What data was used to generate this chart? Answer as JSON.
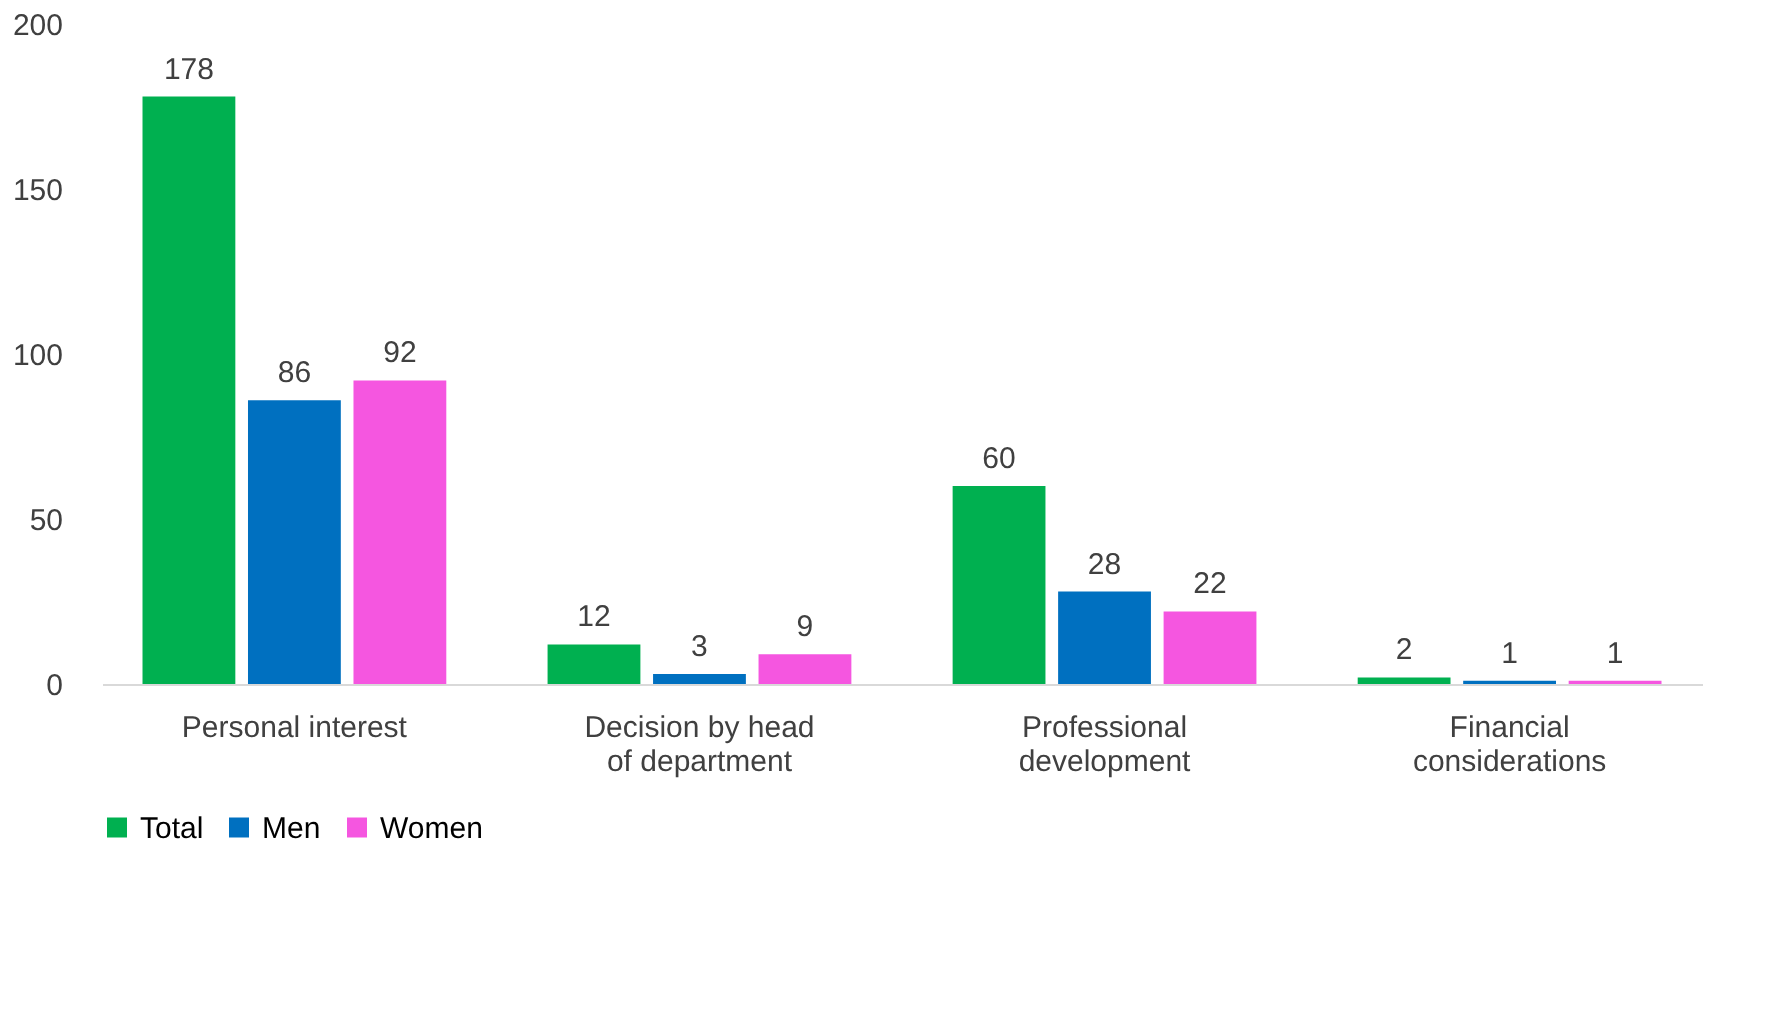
{
  "chart_data": {
    "type": "bar",
    "categories": [
      "Personal interest",
      "Decision by head of department",
      "Professional development",
      "Financial considerations"
    ],
    "series": [
      {
        "name": "Total",
        "color": "#00b050",
        "values": [
          178,
          12,
          60,
          2
        ]
      },
      {
        "name": "Men",
        "color": "#0070c0",
        "values": [
          86,
          3,
          28,
          1
        ]
      },
      {
        "name": "Women",
        "color": "#f556e0",
        "values": [
          92,
          9,
          22,
          1
        ]
      }
    ],
    "ylim": [
      0,
      200
    ],
    "yticks": [
      0,
      50,
      100,
      150,
      200
    ],
    "grid": false,
    "legend": "bottom",
    "data_labels": true
  }
}
